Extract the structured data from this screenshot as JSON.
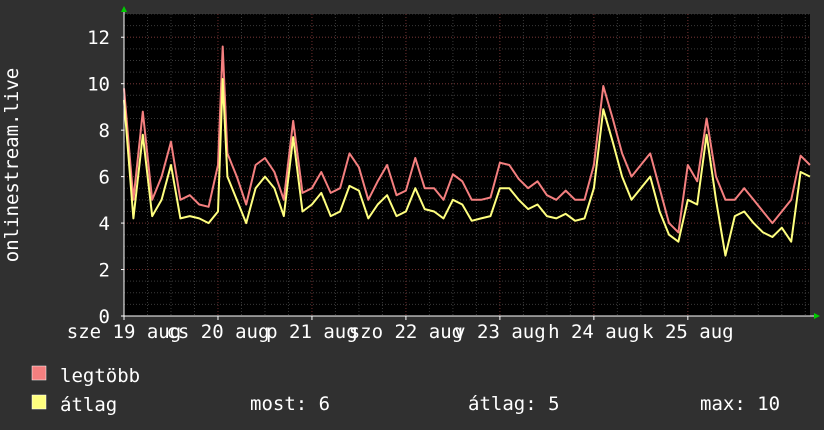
{
  "chart_data": {
    "type": "line",
    "ylabel": "onlinestream.live",
    "ylim": [
      0,
      13
    ],
    "yticks": [
      0,
      2,
      4,
      6,
      8,
      10,
      12
    ],
    "xlim": [
      0,
      7.3
    ],
    "xticks": [
      {
        "pos": 0.0,
        "label": "sze 19 aug"
      },
      {
        "pos": 1.0,
        "label": "cs 20 aug"
      },
      {
        "pos": 2.0,
        "label": "p 21 aug"
      },
      {
        "pos": 3.0,
        "label": "szo 22 aug"
      },
      {
        "pos": 4.0,
        "label": "v 23 aug"
      },
      {
        "pos": 5.0,
        "label": "h 24 aug"
      },
      {
        "pos": 6.0,
        "label": "k 25 aug"
      }
    ],
    "grid": true,
    "colors": {
      "background": "#303030",
      "plot_background": "#000000",
      "grid_minor": "#3a3a3a",
      "grid_major": "#6a2a2a",
      "legtobb": "#f47f7f",
      "atlag": "#ffff7f",
      "axis_arrow": "#00cc00"
    },
    "series": [
      {
        "name": "legtöbb",
        "color": "#f47f7f",
        "x": [
          0.0,
          0.1,
          0.2,
          0.3,
          0.4,
          0.5,
          0.6,
          0.7,
          0.8,
          0.9,
          1.0,
          1.05,
          1.1,
          1.2,
          1.3,
          1.4,
          1.5,
          1.6,
          1.7,
          1.8,
          1.9,
          2.0,
          2.1,
          2.2,
          2.3,
          2.4,
          2.5,
          2.6,
          2.7,
          2.8,
          2.9,
          3.0,
          3.1,
          3.2,
          3.3,
          3.4,
          3.5,
          3.6,
          3.7,
          3.8,
          3.9,
          4.0,
          4.1,
          4.2,
          4.3,
          4.4,
          4.5,
          4.6,
          4.7,
          4.8,
          4.9,
          5.0,
          5.1,
          5.2,
          5.3,
          5.4,
          5.5,
          5.6,
          5.7,
          5.8,
          5.9,
          6.0,
          6.1,
          6.2,
          6.3,
          6.4,
          6.5,
          6.6,
          6.7,
          6.8,
          6.9,
          7.0,
          7.1,
          7.2,
          7.3
        ],
        "y": [
          9.8,
          5.0,
          8.8,
          5.0,
          6.0,
          7.5,
          5.0,
          5.2,
          4.8,
          4.7,
          6.5,
          11.6,
          7.0,
          6.0,
          4.8,
          6.5,
          6.8,
          6.2,
          5.0,
          8.4,
          5.3,
          5.5,
          6.2,
          5.3,
          5.5,
          7.0,
          6.4,
          5.0,
          5.8,
          6.5,
          5.2,
          5.4,
          6.8,
          5.5,
          5.5,
          5.0,
          6.1,
          5.8,
          5.0,
          5.0,
          5.1,
          6.6,
          6.5,
          5.9,
          5.5,
          5.8,
          5.2,
          5.0,
          5.4,
          5.0,
          5.0,
          6.5,
          9.9,
          8.5,
          7.0,
          6.0,
          6.5,
          7.0,
          5.5,
          4.0,
          3.6,
          6.5,
          5.8,
          8.5,
          6.0,
          5.0,
          5.0,
          5.5,
          5.0,
          4.5,
          4.0,
          4.5,
          5.0,
          6.9,
          6.5
        ]
      },
      {
        "name": "átlag",
        "color": "#ffff7f",
        "x": [
          0.0,
          0.1,
          0.2,
          0.3,
          0.4,
          0.5,
          0.6,
          0.7,
          0.8,
          0.9,
          1.0,
          1.05,
          1.1,
          1.2,
          1.3,
          1.4,
          1.5,
          1.6,
          1.7,
          1.8,
          1.9,
          2.0,
          2.1,
          2.2,
          2.3,
          2.4,
          2.5,
          2.6,
          2.7,
          2.8,
          2.9,
          3.0,
          3.1,
          3.2,
          3.3,
          3.4,
          3.5,
          3.6,
          3.7,
          3.8,
          3.9,
          4.0,
          4.1,
          4.2,
          4.3,
          4.4,
          4.5,
          4.6,
          4.7,
          4.8,
          4.9,
          5.0,
          5.1,
          5.2,
          5.3,
          5.4,
          5.5,
          5.6,
          5.7,
          5.8,
          5.9,
          6.0,
          6.1,
          6.2,
          6.3,
          6.4,
          6.5,
          6.6,
          6.7,
          6.8,
          6.9,
          7.0,
          7.1,
          7.2,
          7.3
        ],
        "y": [
          9.3,
          4.2,
          7.8,
          4.3,
          5.0,
          6.5,
          4.2,
          4.3,
          4.2,
          4.0,
          4.5,
          10.2,
          6.0,
          5.0,
          4.0,
          5.5,
          6.0,
          5.5,
          4.3,
          7.7,
          4.5,
          4.8,
          5.3,
          4.3,
          4.5,
          5.6,
          5.4,
          4.2,
          4.8,
          5.2,
          4.3,
          4.5,
          5.5,
          4.6,
          4.5,
          4.2,
          5.0,
          4.8,
          4.1,
          4.2,
          4.3,
          5.5,
          5.5,
          5.0,
          4.6,
          4.8,
          4.3,
          4.2,
          4.4,
          4.1,
          4.2,
          5.5,
          8.9,
          7.5,
          6.0,
          5.0,
          5.5,
          6.0,
          4.5,
          3.5,
          3.2,
          5.0,
          4.8,
          7.8,
          5.0,
          2.6,
          4.3,
          4.5,
          4.0,
          3.6,
          3.4,
          3.8,
          3.2,
          6.2,
          6.0
        ]
      }
    ],
    "legend": [
      {
        "name": "legtöbb",
        "color": "#f47f7f"
      },
      {
        "name": "átlag",
        "color": "#ffff7f"
      }
    ],
    "stats": {
      "most": "most: 6",
      "atlag": "átlag: 5",
      "max": "max: 10"
    }
  }
}
